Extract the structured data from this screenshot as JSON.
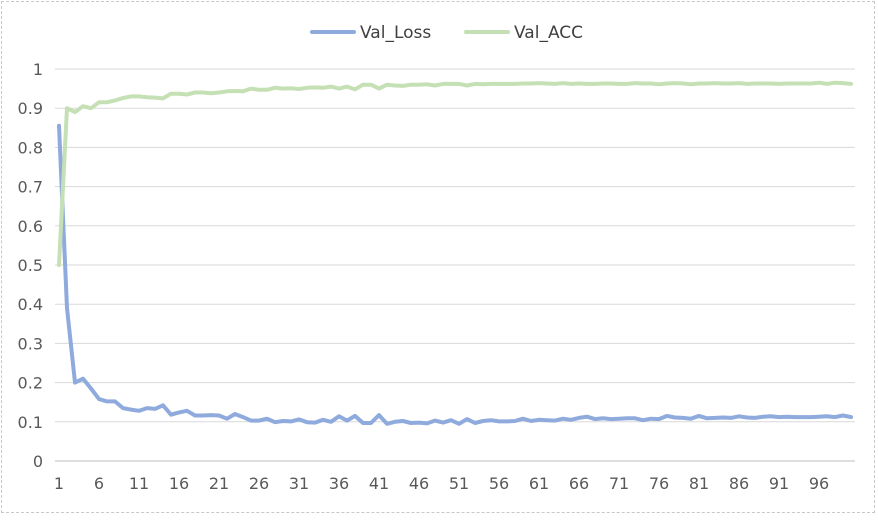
{
  "chart_data": {
    "type": "line",
    "title": "",
    "xlabel": "",
    "ylabel": "",
    "ylim": [
      0,
      1
    ],
    "y_ticks": [
      0,
      0.1,
      0.2,
      0.3,
      0.4,
      0.5,
      0.6,
      0.7,
      0.8,
      0.9,
      1
    ],
    "y_tick_labels": [
      "0",
      "0.1",
      "0.2",
      "0.3",
      "0.4",
      "0.5",
      "0.6",
      "0.7",
      "0.8",
      "0.9",
      "1"
    ],
    "x_range": [
      1,
      100
    ],
    "x_ticks": [
      1,
      6,
      11,
      16,
      21,
      26,
      31,
      36,
      41,
      46,
      51,
      56,
      61,
      66,
      71,
      76,
      81,
      86,
      91,
      96
    ],
    "x_tick_labels": [
      "1",
      "6",
      "11",
      "16",
      "21",
      "26",
      "31",
      "36",
      "41",
      "46",
      "51",
      "56",
      "61",
      "66",
      "71",
      "76",
      "81",
      "86",
      "91",
      "96"
    ],
    "grid": "horizontal",
    "legend_position": "top",
    "series": [
      {
        "name": "Val_Loss",
        "color": "#8faadc",
        "values": [
          0.855,
          0.39,
          0.2,
          0.21,
          0.185,
          0.158,
          0.152,
          0.152,
          0.135,
          0.131,
          0.128,
          0.135,
          0.133,
          0.142,
          0.118,
          0.124,
          0.128,
          0.116,
          0.116,
          0.117,
          0.116,
          0.108,
          0.12,
          0.112,
          0.103,
          0.103,
          0.108,
          0.099,
          0.102,
          0.101,
          0.106,
          0.099,
          0.098,
          0.105,
          0.1,
          0.114,
          0.103,
          0.115,
          0.097,
          0.097,
          0.117,
          0.095,
          0.1,
          0.102,
          0.097,
          0.098,
          0.096,
          0.103,
          0.098,
          0.104,
          0.095,
          0.107,
          0.097,
          0.102,
          0.104,
          0.101,
          0.101,
          0.102,
          0.108,
          0.102,
          0.105,
          0.104,
          0.103,
          0.108,
          0.105,
          0.11,
          0.113,
          0.107,
          0.109,
          0.107,
          0.108,
          0.109,
          0.109,
          0.104,
          0.108,
          0.107,
          0.115,
          0.111,
          0.11,
          0.108,
          0.115,
          0.109,
          0.11,
          0.111,
          0.11,
          0.114,
          0.111,
          0.11,
          0.113,
          0.114,
          0.112,
          0.113,
          0.112,
          0.112,
          0.112,
          0.113,
          0.114,
          0.112,
          0.116,
          0.112
        ]
      },
      {
        "name": "Val_ACC",
        "color": "#c5e0b4",
        "values": [
          0.5,
          0.9,
          0.89,
          0.905,
          0.9,
          0.915,
          0.915,
          0.92,
          0.926,
          0.93,
          0.93,
          0.928,
          0.927,
          0.925,
          0.937,
          0.937,
          0.935,
          0.94,
          0.94,
          0.938,
          0.94,
          0.943,
          0.944,
          0.943,
          0.95,
          0.947,
          0.947,
          0.952,
          0.95,
          0.951,
          0.949,
          0.952,
          0.953,
          0.952,
          0.955,
          0.95,
          0.955,
          0.948,
          0.96,
          0.96,
          0.95,
          0.96,
          0.958,
          0.957,
          0.96,
          0.96,
          0.961,
          0.958,
          0.962,
          0.962,
          0.962,
          0.958,
          0.962,
          0.961,
          0.962,
          0.962,
          0.962,
          0.962,
          0.963,
          0.963,
          0.964,
          0.963,
          0.962,
          0.964,
          0.962,
          0.963,
          0.962,
          0.962,
          0.963,
          0.963,
          0.962,
          0.962,
          0.964,
          0.963,
          0.963,
          0.961,
          0.963,
          0.964,
          0.963,
          0.961,
          0.963,
          0.963,
          0.964,
          0.963,
          0.963,
          0.964,
          0.962,
          0.963,
          0.963,
          0.963,
          0.962,
          0.963,
          0.963,
          0.963,
          0.963,
          0.965,
          0.962,
          0.965,
          0.964,
          0.962
        ]
      }
    ]
  }
}
